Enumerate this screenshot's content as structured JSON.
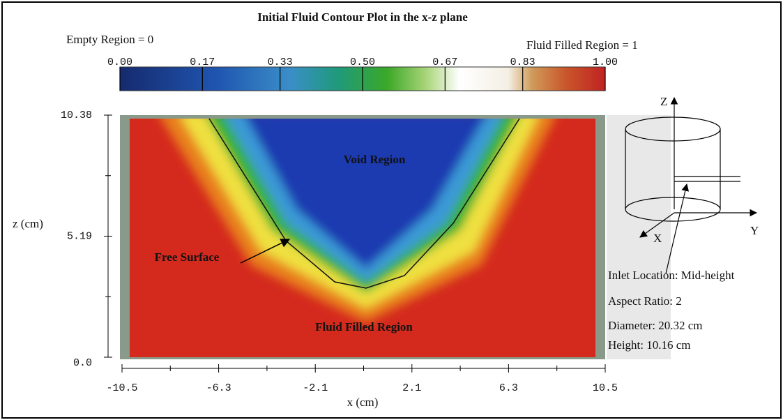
{
  "chart_data": {
    "type": "contour",
    "title": "Initial Fluid Contour Plot in the x-z plane",
    "colorbar": {
      "low_label": "Empty Region = 0",
      "high_label": "Fluid Filled Region = 1",
      "lim": [
        0,
        1
      ],
      "ticks": [
        {
          "value": 0,
          "label": "0.00"
        },
        0.17,
        0.33,
        {
          "value": 0.5,
          "label": "0.50"
        },
        0.67,
        0.83,
        {
          "value": 1,
          "label": "1.00"
        }
      ]
    },
    "xlabel": "x (cm)",
    "ylabel": "z (cm)",
    "xlim": [
      -10.5,
      10.5
    ],
    "xticks": [
      -10.5,
      -6.3,
      -2.1,
      2.1,
      6.3,
      10.5
    ],
    "ylim": [
      0,
      10.38
    ],
    "yticks": [
      {
        "value": 0,
        "label": "0.0"
      },
      5.19,
      10.38
    ],
    "annotations": {
      "void": "Void Region",
      "surface": "Free Surface",
      "fluid": "Fluid Filled Region"
    },
    "inset": {
      "z_axis": "Z",
      "y_axis": "Y",
      "x_axis": "X",
      "notes": [
        "Inlet Location: Mid-height",
        "Aspect Ratio: 2",
        "Diameter: 20.32 cm",
        "Height: 10.16 cm"
      ]
    }
  }
}
